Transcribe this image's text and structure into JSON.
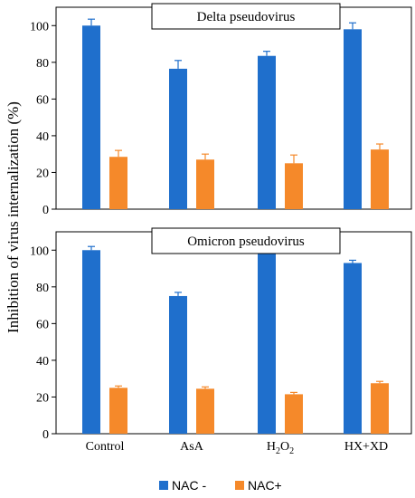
{
  "chart_data": [
    {
      "type": "bar",
      "title": "Delta pseudovirus",
      "categories": [
        "Control",
        "AsA",
        "H2O2",
        "HX+XD"
      ],
      "ylabel": "Inhibition of virus internalization (%)",
      "ylim": [
        0,
        110
      ],
      "yticks": [
        0,
        20,
        40,
        60,
        80,
        100
      ],
      "grid": false,
      "series": [
        {
          "name": "NAC -",
          "color": "#1f6fcc",
          "values": [
            100,
            76.5,
            83.5,
            98
          ],
          "errors": [
            3.5,
            4.5,
            2.5,
            3.5
          ]
        },
        {
          "name": "NAC+",
          "color": "#f5892a",
          "values": [
            28.5,
            27,
            25,
            32.5
          ],
          "errors": [
            3.5,
            3,
            4.5,
            3
          ]
        }
      ]
    },
    {
      "type": "bar",
      "title": "Omicron pseudovirus",
      "categories": [
        "Control",
        "AsA",
        "H2O2",
        "HX+XD"
      ],
      "ylabel": "Inhibition of virus internalization (%)",
      "ylim": [
        0,
        110
      ],
      "yticks": [
        0,
        20,
        40,
        60,
        80,
        100
      ],
      "grid": false,
      "series": [
        {
          "name": "NAC -",
          "color": "#1f6fcc",
          "values": [
            100,
            75,
            98,
            93
          ],
          "errors": [
            2,
            2,
            3.5,
            1.5
          ]
        },
        {
          "name": "NAC+",
          "color": "#f5892a",
          "values": [
            25,
            24.5,
            21.5,
            27.5
          ],
          "errors": [
            1,
            1,
            1,
            1
          ]
        }
      ]
    }
  ],
  "xaxis": {
    "labels": [
      {
        "text": "Control"
      },
      {
        "text": "AsA"
      },
      {
        "base1": "H",
        "sub1": "2",
        "base2": "O",
        "sub2": "2"
      },
      {
        "text": "HX+XD"
      }
    ]
  },
  "legend": {
    "placement": "bottom-center",
    "items": [
      {
        "label": "NAC -",
        "color": "#1f6fcc"
      },
      {
        "label": "NAC+",
        "color": "#f5892a"
      }
    ]
  },
  "shared_ylabel": "Inhibition of virus internalization (%)"
}
